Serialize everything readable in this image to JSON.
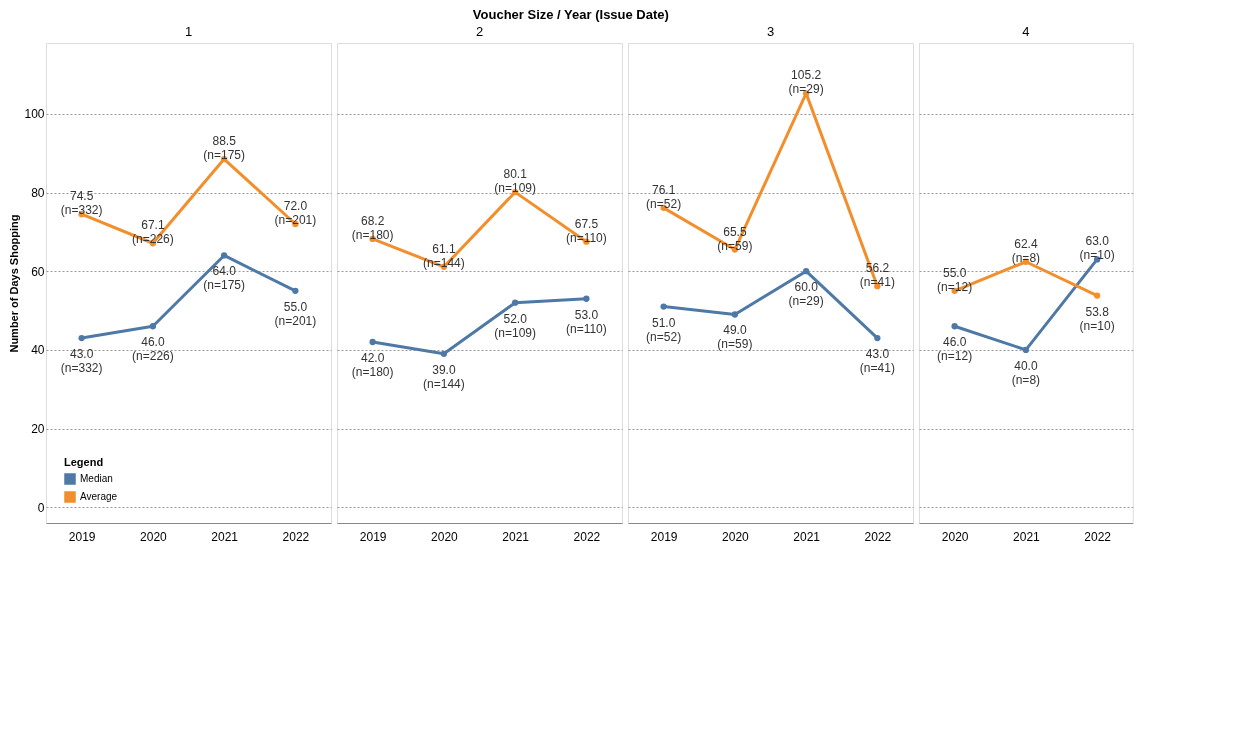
{
  "chart_data": [
    {
      "type": "line",
      "title": "1",
      "annotations": [
        "Voucher Size / Year (Issue Date)"
      ],
      "ylabel": "Number of Days Shopping",
      "categories": [
        "2019",
        "2020",
        "2021",
        "2022"
      ],
      "ylim": [
        -4,
        118
      ],
      "yticks": [
        0,
        20,
        40,
        60,
        80,
        100
      ],
      "grid": "y",
      "marker": "circle",
      "legend": "bottom left",
      "legend_title": "Legend",
      "series": [
        {
          "name": "Median",
          "color": "#4e79a7",
          "values": [
            43.0,
            46.0,
            64.0,
            55.0
          ],
          "value_labels": [
            "43.0\n(n=332)",
            "46.0\n(n=226)",
            "64.0\n(n=175)",
            "55.0\n(n=201)"
          ]
        },
        {
          "name": "Average",
          "color": "#f28e2b",
          "values": [
            74.5,
            67.1,
            88.5,
            72.0
          ],
          "value_labels": [
            "74.5\n(n=332)",
            "67.1\n(n=226)",
            "88.5\n(n=175)",
            "72.0\n(n=201)"
          ]
        }
      ]
    },
    {
      "type": "line",
      "title": "2",
      "categories": [
        "2019",
        "2020",
        "2021",
        "2022"
      ],
      "ylim": [
        -4,
        118
      ],
      "yticks": [
        0,
        20,
        40,
        60,
        80,
        100
      ],
      "grid": "y",
      "marker": "circle",
      "tick_labels": "x",
      "series": [
        {
          "name": "Median",
          "color": "#4e79a7",
          "values": [
            42.0,
            39.0,
            52.0,
            53.0
          ],
          "value_labels": [
            "42.0\n(n=180)",
            "39.0\n(n=144)",
            "52.0\n(n=109)",
            "53.0\n(n=110)"
          ]
        },
        {
          "name": "Average",
          "color": "#f28e2b",
          "values": [
            68.2,
            61.1,
            80.1,
            67.5
          ],
          "value_labels": [
            "68.2\n(n=180)",
            "61.1\n(n=144)",
            "80.1\n(n=109)",
            "67.5\n(n=110)"
          ]
        }
      ]
    },
    {
      "type": "line",
      "title": "3",
      "categories": [
        "2019",
        "2020",
        "2021",
        "2022"
      ],
      "ylim": [
        -4,
        118
      ],
      "yticks": [
        0,
        20,
        40,
        60,
        80,
        100
      ],
      "grid": "y",
      "marker": "circle",
      "tick_labels": "x",
      "series": [
        {
          "name": "Median",
          "color": "#4e79a7",
          "values": [
            51.0,
            49.0,
            60.0,
            43.0
          ],
          "value_labels": [
            "51.0\n(n=52)",
            "49.0\n(n=59)",
            "60.0\n(n=29)",
            "43.0\n(n=41)"
          ]
        },
        {
          "name": "Average",
          "color": "#f28e2b",
          "values": [
            76.1,
            65.5,
            105.2,
            56.2
          ],
          "value_labels": [
            "76.1\n(n=52)",
            "65.5\n(n=59)",
            "105.2\n(n=29)",
            "56.2\n(n=41)"
          ]
        }
      ]
    },
    {
      "type": "line",
      "title": "4",
      "categories": [
        "2020",
        "2021",
        "2022"
      ],
      "ylim": [
        -4,
        118
      ],
      "yticks": [
        0,
        20,
        40,
        60,
        80,
        100
      ],
      "grid": "y",
      "marker": "circle",
      "tick_labels": "x",
      "series": [
        {
          "name": "Median",
          "color": "#4e79a7",
          "values": [
            46.0,
            40.0,
            63.0
          ],
          "value_labels": [
            "46.0\n(n=12)",
            "40.0\n(n=8)",
            "63.0\n(n=10)"
          ]
        },
        {
          "name": "Average",
          "color": "#f28e2b",
          "values": [
            55.0,
            62.4,
            53.8
          ],
          "value_labels": [
            "55.0\n(n=12)",
            "62.4\n(n=8)",
            "53.8\n(n=10)"
          ]
        }
      ]
    }
  ]
}
